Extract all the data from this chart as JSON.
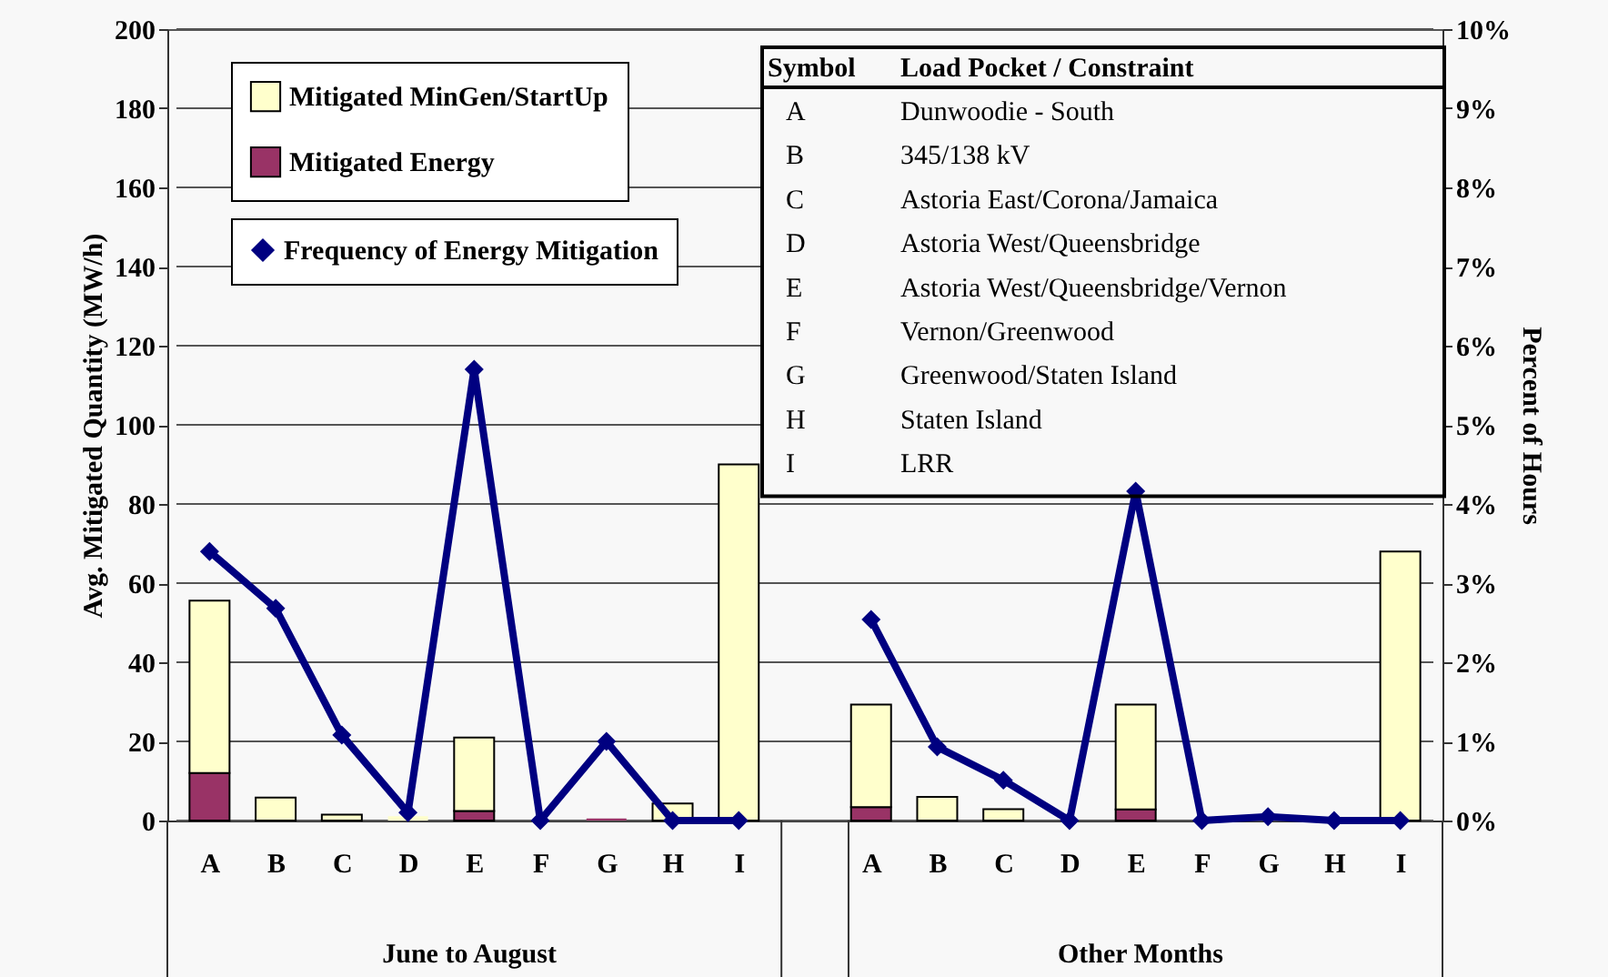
{
  "chart_data": {
    "type": "bar",
    "stacked": true,
    "ylabel": "Avg. Mitigated Quantity (MW/h)",
    "y2label": "Percent of Hours",
    "categories": [
      "A",
      "B",
      "C",
      "D",
      "E",
      "F",
      "G",
      "H",
      "I",
      null,
      "A",
      "B",
      "C",
      "D",
      "E",
      "F",
      "G",
      "H",
      "I"
    ],
    "series": [
      {
        "name": "Mitigated Energy",
        "type": "bar",
        "color": "#993366",
        "values": [
          12,
          null,
          0,
          0,
          2.4,
          0,
          0.5,
          0,
          0,
          null,
          3.4,
          null,
          0,
          0,
          2.8,
          0,
          0.3,
          0,
          0
        ]
      },
      {
        "name": "Mitigated MinGen/StartUp",
        "type": "bar",
        "color": "#ffffcc",
        "values": [
          43.6,
          5.8,
          1.5,
          1.1,
          18.6,
          0,
          0,
          4.3,
          90,
          null,
          25.9,
          6,
          2.9,
          0,
          26.5,
          0,
          0,
          0,
          68
        ]
      },
      {
        "name": "Frequency of Energy Mitigation",
        "type": "line",
        "axis": "y2",
        "color": "#000080",
        "marker": "diamond",
        "values": [
          3.4,
          2.68,
          1.08,
          0.1,
          5.7,
          0,
          1.0,
          0,
          0,
          null,
          2.54,
          0.93,
          0.51,
          0,
          4.16,
          0,
          0.05,
          0,
          0
        ]
      }
    ],
    "ylim": [
      0,
      200
    ],
    "yticks": [
      0,
      20,
      40,
      60,
      80,
      100,
      120,
      140,
      160,
      180,
      200
    ],
    "y2lim": [
      0,
      10
    ],
    "y2ticks": [
      {
        "value": 0,
        "label": "0%"
      },
      {
        "value": 1,
        "label": "1%"
      },
      {
        "value": 2,
        "label": "2%"
      },
      {
        "value": 3,
        "label": "3%"
      },
      {
        "value": 4,
        "label": "4%"
      },
      {
        "value": 5,
        "label": "5%"
      },
      {
        "value": 6,
        "label": "6%"
      },
      {
        "value": 7,
        "label": "7%"
      },
      {
        "value": 8,
        "label": "8%"
      },
      {
        "value": 9,
        "label": "9%"
      },
      {
        "value": 10,
        "label": "10%"
      }
    ],
    "grid": "y",
    "legend": "top left",
    "annotations": [
      "June to August",
      "Other Months",
      "Symbol",
      "Load Pocket / Constraint",
      "A",
      "Dunwoodie - South",
      "B",
      "345/138 kV",
      "C",
      "Astoria East/Corona/Jamaica",
      "D",
      "Astoria West/Queensbridge",
      "E",
      "Astoria West/Queensbridge/Vernon",
      "F",
      "Vernon/Greenwood",
      "G",
      "Greenwood/Staten Island",
      "H",
      "Staten Island",
      "I",
      "LRR"
    ]
  }
}
